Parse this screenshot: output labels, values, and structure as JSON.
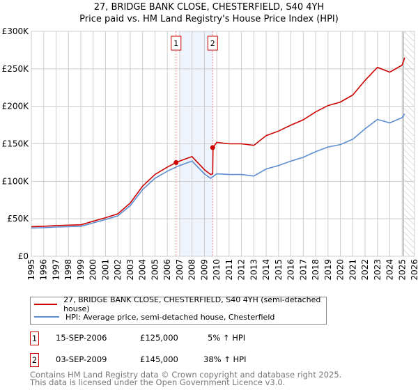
{
  "chart_data": {
    "type": "line",
    "title": "27, BRIDGE BANK CLOSE, CHESTERFIELD, S40 4YH",
    "subtitle": "Price paid vs. HM Land Registry's House Price Index (HPI)",
    "xlim": [
      1995,
      2026
    ],
    "ylim": [
      0,
      300000
    ],
    "yticks": [
      0,
      50000,
      100000,
      150000,
      200000,
      250000,
      300000
    ],
    "ytick_labels": [
      "£0",
      "£50K",
      "£100K",
      "£150K",
      "£200K",
      "£250K",
      "£300K"
    ],
    "xticks": [
      "1995",
      "1996",
      "1997",
      "1998",
      "1999",
      "2000",
      "2001",
      "2002",
      "2003",
      "2004",
      "2005",
      "2006",
      "2007",
      "2008",
      "2009",
      "2010",
      "2011",
      "2012",
      "2013",
      "2014",
      "2015",
      "2016",
      "2017",
      "2018",
      "2019",
      "2020",
      "2021",
      "2022",
      "2023",
      "2024",
      "2025",
      "2026"
    ],
    "grid": true,
    "series": [
      {
        "name": "27, BRIDGE BANK CLOSE, CHESTERFIELD, S40 4YH (semi-detached house)",
        "color": "#cc0000",
        "x": [
          1995,
          1996,
          1997,
          1998,
          1999,
          2000,
          2001,
          2002,
          2003,
          2004,
          2005,
          2006,
          2006.71,
          2007,
          2008,
          2009,
          2009.5,
          2009.67,
          2009.7,
          2010,
          2011,
          2012,
          2013,
          2014,
          2015,
          2016,
          2017,
          2018,
          2019,
          2020,
          2021,
          2022,
          2023,
          2024,
          2025,
          2025.2
        ],
        "y": [
          39600,
          40000,
          41000,
          41500,
          42000,
          46700,
          51500,
          56700,
          71000,
          93500,
          109000,
          119000,
          125000,
          127000,
          133000,
          115500,
          109000,
          110000,
          145000,
          152000,
          150000,
          150000,
          148000,
          161000,
          167000,
          175000,
          182000,
          192500,
          201000,
          205600,
          215000,
          234600,
          252000,
          245600,
          255000,
          265000
        ]
      },
      {
        "name": "HPI: Average price, semi-detached house, Chesterfield",
        "color": "#5b8dd0",
        "x": [
          1995,
          1996,
          1997,
          1998,
          1999,
          2000,
          2001,
          2002,
          2003,
          2004,
          2005,
          2006,
          2006.71,
          2007,
          2008,
          2009,
          2009.5,
          2010,
          2011,
          2012,
          2013,
          2014,
          2015,
          2016,
          2017,
          2018,
          2019,
          2020,
          2021,
          2022,
          2023,
          2024,
          2025,
          2025.2
        ],
        "y": [
          37700,
          38200,
          39000,
          39500,
          40000,
          44500,
          49000,
          54000,
          67500,
          89000,
          104000,
          113500,
          119000,
          121000,
          127000,
          110000,
          104000,
          110000,
          109000,
          109000,
          107000,
          116500,
          121000,
          127000,
          132000,
          139500,
          145700,
          149000,
          156000,
          170000,
          182500,
          178000,
          185000,
          190000
        ]
      }
    ],
    "sales": [
      {
        "label": "1",
        "x": 2006.71,
        "y": 125000
      },
      {
        "label": "2",
        "x": 2009.67,
        "y": 145000
      }
    ],
    "shaded_range": [
      2007.0,
      2009.67
    ],
    "forecast_from": 2025.1
  },
  "legend": {
    "items": [
      {
        "label": "27, BRIDGE BANK CLOSE, CHESTERFIELD, S40 4YH (semi-detached house)",
        "color": "#cc0000"
      },
      {
        "label": "HPI: Average price, semi-detached house, Chesterfield",
        "color": "#5b8dd0"
      }
    ]
  },
  "transactions": [
    {
      "num": "1",
      "date": "15-SEP-2006",
      "price": "£125,000",
      "hpi": "5% ↑ HPI"
    },
    {
      "num": "2",
      "date": "03-SEP-2009",
      "price": "£145,000",
      "hpi": "38% ↑ HPI"
    }
  ],
  "footer": {
    "line1": "Contains HM Land Registry data © Crown copyright and database right 2025.",
    "line2": "This data is licensed under the Open Government Licence v3.0."
  }
}
